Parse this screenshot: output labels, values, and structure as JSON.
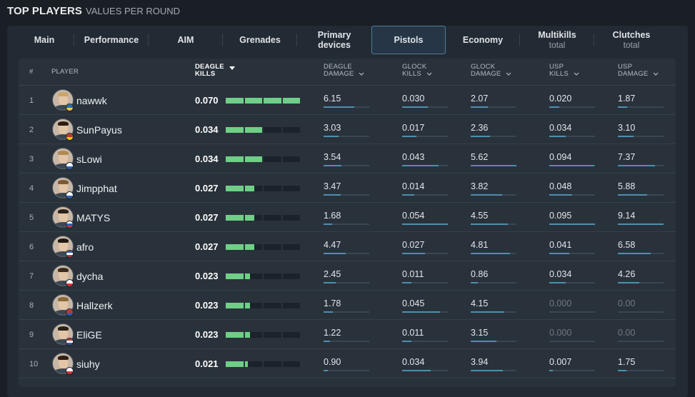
{
  "header": {
    "title": "TOP PLAYERS",
    "subtitle": "VALUES PER ROUND"
  },
  "tabs": [
    {
      "label": "Main",
      "sub": ""
    },
    {
      "label": "Performance",
      "sub": ""
    },
    {
      "label": "AIM",
      "sub": ""
    },
    {
      "label": "Grenades",
      "sub": ""
    },
    {
      "label": "Primary",
      "sub": "devices"
    },
    {
      "label": "Pistols",
      "sub": ""
    },
    {
      "label": "Economy",
      "sub": ""
    },
    {
      "label": "Multikills",
      "sub": "total"
    },
    {
      "label": "Clutches",
      "sub": "total"
    }
  ],
  "active_tab": "Pistols",
  "columns": {
    "rank": "#",
    "player": "PLAYER",
    "deagle_kills": [
      "DEAGLE",
      "KILLS"
    ],
    "deagle_damage": [
      "DEAGLE",
      "DAMAGE"
    ],
    "glock_kills": [
      "GLOCK",
      "KILLS"
    ],
    "glock_damage": [
      "GLOCK",
      "DAMAGE"
    ],
    "usp_kills": [
      "USP",
      "KILLS"
    ],
    "usp_damage": [
      "USP",
      "DAMAGE"
    ]
  },
  "rows": [
    {
      "rank": "1",
      "player": "nawwk",
      "flag": "SE",
      "deagle_kills": "0.070",
      "deagle_damage": "6.15",
      "glock_kills": "0.030",
      "glock_damage": "2.07",
      "usp_kills": "0.020",
      "usp_damage": "1.87"
    },
    {
      "rank": "2",
      "player": "SunPayus",
      "flag": "ES",
      "deagle_kills": "0.034",
      "deagle_damage": "3.03",
      "glock_kills": "0.017",
      "glock_damage": "2.36",
      "usp_kills": "0.034",
      "usp_damage": "3.10"
    },
    {
      "rank": "3",
      "player": "sLowi",
      "flag": "FI",
      "deagle_kills": "0.034",
      "deagle_damage": "3.54",
      "glock_kills": "0.043",
      "glock_damage": "5.62",
      "usp_kills": "0.094",
      "usp_damage": "7.37"
    },
    {
      "rank": "4",
      "player": "Jimpphat",
      "flag": "FI",
      "deagle_kills": "0.027",
      "deagle_damage": "3.47",
      "glock_kills": "0.014",
      "glock_damage": "3.82",
      "usp_kills": "0.048",
      "usp_damage": "5.88"
    },
    {
      "rank": "5",
      "player": "MATYS",
      "flag": "SK",
      "deagle_kills": "0.027",
      "deagle_damage": "1.68",
      "glock_kills": "0.054",
      "glock_damage": "4.55",
      "usp_kills": "0.095",
      "usp_damage": "9.14"
    },
    {
      "rank": "6",
      "player": "afro",
      "flag": "FR",
      "deagle_kills": "0.027",
      "deagle_damage": "4.47",
      "glock_kills": "0.027",
      "glock_damage": "4.81",
      "usp_kills": "0.041",
      "usp_damage": "6.58"
    },
    {
      "rank": "7",
      "player": "dycha",
      "flag": "PL",
      "deagle_kills": "0.023",
      "deagle_damage": "2.45",
      "glock_kills": "0.011",
      "glock_damage": "0.86",
      "usp_kills": "0.034",
      "usp_damage": "4.26"
    },
    {
      "rank": "8",
      "player": "Hallzerk",
      "flag": "NO",
      "deagle_kills": "0.023",
      "deagle_damage": "1.78",
      "glock_kills": "0.045",
      "glock_damage": "4.15",
      "usp_kills": "0.000",
      "usp_damage": "0.00"
    },
    {
      "rank": "9",
      "player": "EliGE",
      "flag": "US",
      "deagle_kills": "0.023",
      "deagle_damage": "1.22",
      "glock_kills": "0.011",
      "glock_damage": "3.15",
      "usp_kills": "0.000",
      "usp_damage": "0.00"
    },
    {
      "rank": "10",
      "player": "siuhy",
      "flag": "PL",
      "deagle_kills": "0.021",
      "deagle_damage": "0.90",
      "glock_kills": "0.034",
      "glock_damage": "3.94",
      "usp_kills": "0.007",
      "usp_damage": "1.75"
    }
  ],
  "colors": {
    "accent_bar": "#6fcf86",
    "mini_bar": "#4d8fb0",
    "active_tab_border": "#4e7d96"
  }
}
